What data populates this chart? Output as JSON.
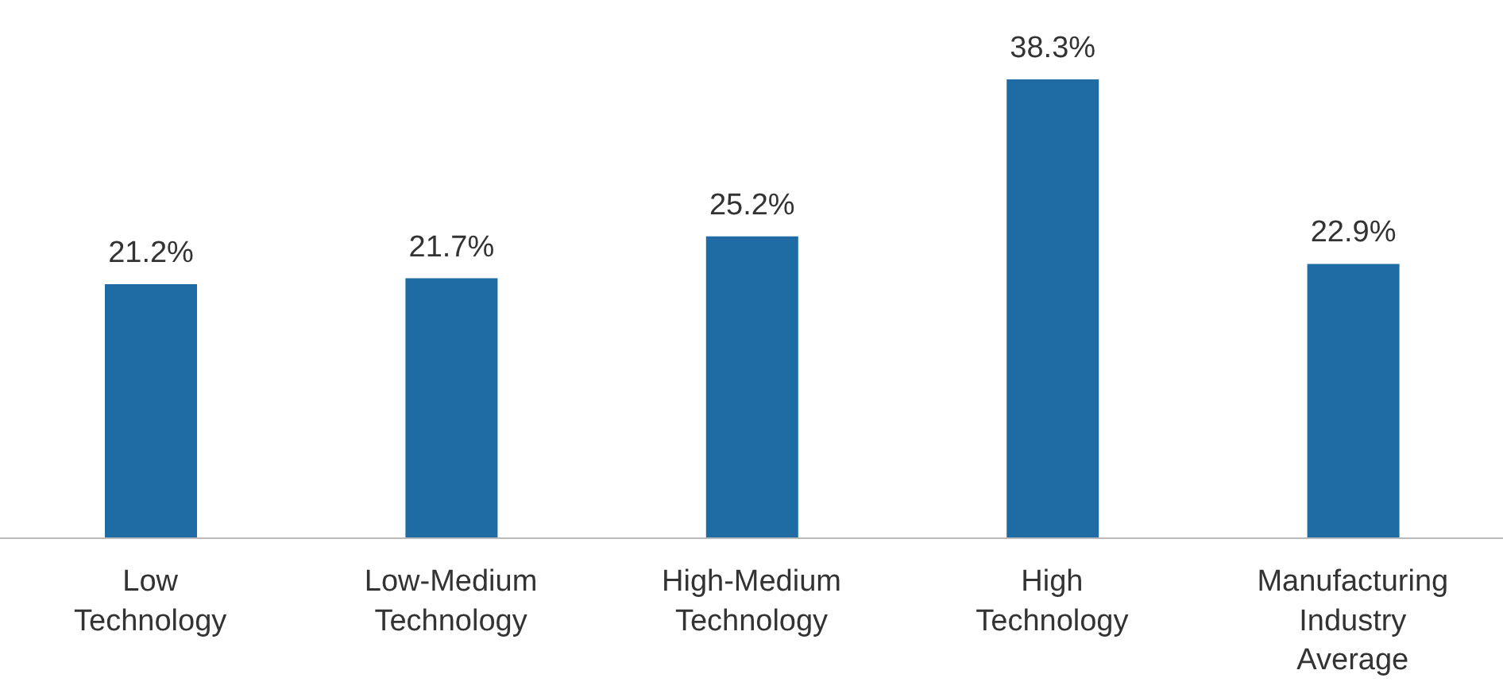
{
  "chart_data": {
    "type": "bar",
    "categories": [
      "Low Technology",
      "Low-Medium Technology",
      "High-Medium Technology",
      "High Technology",
      "Manufacturing Industry Average"
    ],
    "values": [
      21.2,
      21.7,
      25.2,
      38.3,
      22.9
    ],
    "value_labels": [
      "21.2%",
      "21.7%",
      "25.2%",
      "38.3%",
      "22.9%"
    ],
    "color": "#1f6ca4"
  }
}
